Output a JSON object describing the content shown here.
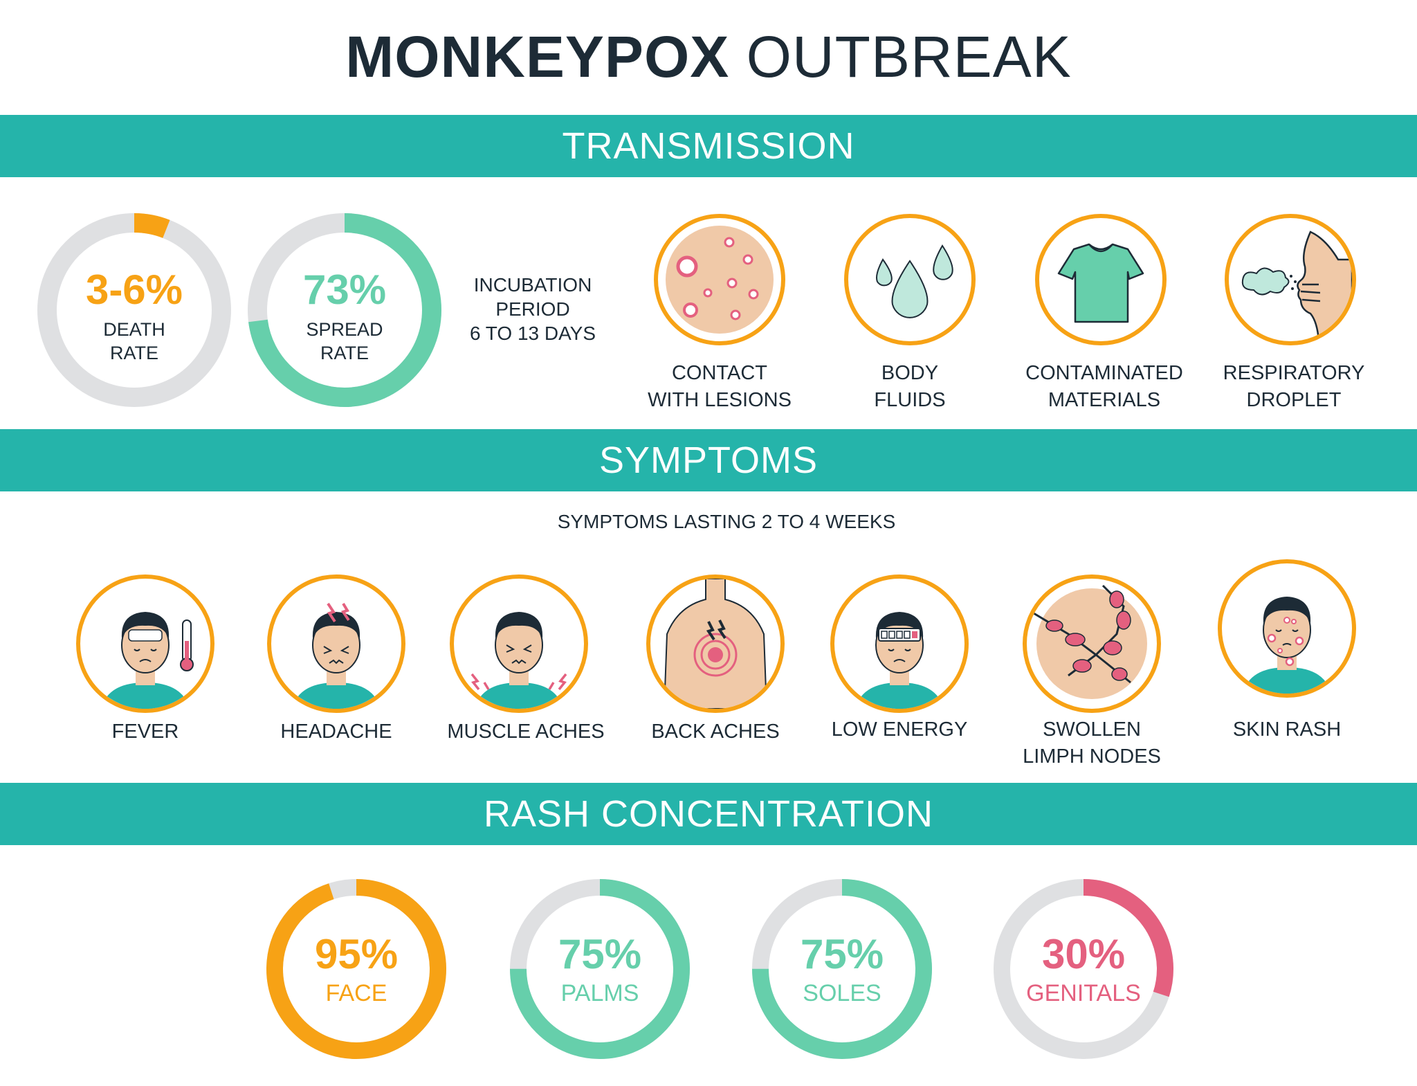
{
  "header": {
    "title_bold": "MONKEYPOX",
    "title_light": "OUTBREAK"
  },
  "sections": {
    "transmission": "TRANSMISSION",
    "symptoms": "SYMPTOMS",
    "rash": "RASH CONCENTRATION"
  },
  "stats": {
    "death": {
      "value": "3-6%",
      "label_1": "DEATH",
      "label_2": "RATE",
      "fraction": 0.06,
      "color": "#f7a215"
    },
    "spread": {
      "value": "73%",
      "label_1": "SPREAD",
      "label_2": "RATE",
      "fraction": 0.73,
      "color": "#66cfab"
    },
    "incubation": {
      "line_1": "INCUBATION",
      "line_2": "PERIOD",
      "line_3": "6 TO 13 DAYS"
    }
  },
  "transmission_items": [
    {
      "icon": "lesions-icon",
      "line_1": "CONTACT",
      "line_2": "WITH LESIONS"
    },
    {
      "icon": "body-fluids-icon",
      "line_1": "BODY",
      "line_2": "FLUIDS"
    },
    {
      "icon": "shirt-icon",
      "line_1": "CONTAMINATED",
      "line_2": "MATERIALS"
    },
    {
      "icon": "respiratory-icon",
      "line_1": "RESPIRATORY",
      "line_2": "DROPLET"
    }
  ],
  "symptoms_note": "SYMPTOMS LASTING 2 TO 4 WEEKS",
  "symptom_items": [
    {
      "icon": "fever-icon",
      "line_1": "FEVER",
      "line_2": ""
    },
    {
      "icon": "headache-icon",
      "line_1": "HEADACHE",
      "line_2": ""
    },
    {
      "icon": "muscle-aches-icon",
      "line_1": "MUSCLE ACHES",
      "line_2": ""
    },
    {
      "icon": "back-aches-icon",
      "line_1": "BACK ACHES",
      "line_2": ""
    },
    {
      "icon": "low-energy-icon",
      "line_1": "LOW ENERGY",
      "line_2": ""
    },
    {
      "icon": "lymph-nodes-icon",
      "line_1": "SWOLLEN",
      "line_2": "LIMPH NODES"
    },
    {
      "icon": "skin-rash-icon",
      "line_1": "SKIN RASH",
      "line_2": ""
    }
  ],
  "rash_items": [
    {
      "value": "95%",
      "label": "FACE",
      "fraction": 0.95,
      "color": "#f7a215"
    },
    {
      "value": "75%",
      "label": "PALMS",
      "fraction": 0.75,
      "color": "#66cfab"
    },
    {
      "value": "75%",
      "label": "SOLES",
      "fraction": 0.75,
      "color": "#66cfab"
    },
    {
      "value": "30%",
      "label": "GENITALS",
      "fraction": 0.3,
      "color": "#e4607f"
    }
  ],
  "colors": {
    "band": "#25b4aa",
    "orange": "#f7a215",
    "mint": "#66cfab",
    "pink": "#e4607f",
    "track": "#dfe0e2",
    "skin": "#f0c9a8",
    "hair": "#1d2b36"
  }
}
